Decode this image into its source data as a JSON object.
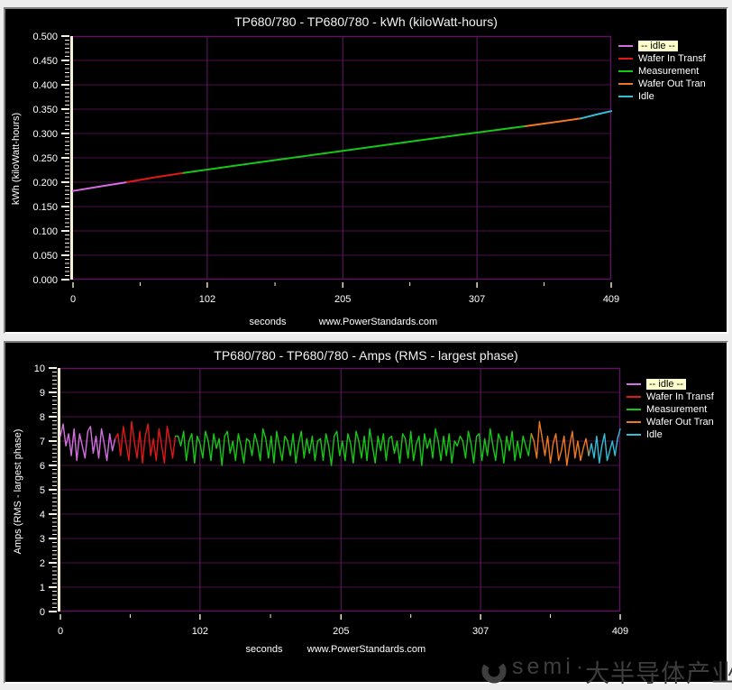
{
  "style": {
    "background": "#000000",
    "grid_color": "#4b104b",
    "vgrid_color": "#67196a",
    "frame_color": "#5c155c",
    "axis_color": "#f7f1d8",
    "text_color": "#ffffff",
    "highlight_color": "#ffffcc"
  },
  "legend_items": [
    {
      "label": "-- idle --",
      "color": "#d46ee0",
      "highlighted": true
    },
    {
      "label": "Wafer In Transf",
      "color": "#e01818",
      "highlighted": false
    },
    {
      "label": "Measurement",
      "color": "#16c816",
      "highlighted": false
    },
    {
      "label": "Wafer Out Tran",
      "color": "#f07820",
      "highlighted": false
    },
    {
      "label": "Idle",
      "color": "#32bdd8",
      "highlighted": false
    }
  ],
  "watermark": {
    "latin": "semi",
    "separator": "·",
    "chinese": "大半导体产业网",
    "color": "#3e3e3e"
  },
  "chart_data": [
    {
      "type": "line",
      "title": "TP680/780 - TP680/780 - kWh (kiloWatt-hours)",
      "xlabel": "seconds",
      "ylabel": "kWh (kiloWatt-hours)",
      "annotation": "www.PowerStandards.com",
      "xlim": [
        0,
        409
      ],
      "ylim": [
        0,
        0.5
      ],
      "xtick_values": [
        0,
        102,
        205,
        307,
        409
      ],
      "xtick_labels": [
        "0",
        "102",
        "205",
        "307",
        "409"
      ],
      "ytick_values": [
        0,
        0.05,
        0.1,
        0.15,
        0.2,
        0.25,
        0.3,
        0.35,
        0.4,
        0.45,
        0.5
      ],
      "ytick_labels": [
        "0.000",
        "0.050",
        "0.100",
        "0.150",
        "0.200",
        "0.250",
        "0.300",
        "0.350",
        "0.400",
        "0.450",
        "0.500"
      ],
      "y_minor_per_interval": 5,
      "x_minor_per_interval": 1,
      "grid": true,
      "legend_position": "right",
      "stroke_width": 2,
      "series": [
        {
          "name": "-- idle --",
          "color": "#d46ee0",
          "points": [
            [
              0,
              0.182
            ],
            [
              20,
              0.191
            ],
            [
              41,
              0.2
            ]
          ]
        },
        {
          "name": "Wafer In Transf",
          "color": "#e01818",
          "points": [
            [
              41,
              0.2
            ],
            [
              62,
              0.21
            ],
            [
              84,
              0.219
            ]
          ]
        },
        {
          "name": "Measurement",
          "color": "#16c816",
          "points": [
            [
              84,
              0.219
            ],
            [
              150,
              0.244
            ],
            [
              220,
              0.27
            ],
            [
              290,
              0.296
            ],
            [
              344,
              0.315
            ]
          ]
        },
        {
          "name": "Wafer Out Tran",
          "color": "#f07820",
          "points": [
            [
              344,
              0.315
            ],
            [
              365,
              0.323
            ],
            [
              386,
              0.331
            ]
          ]
        },
        {
          "name": "Idle",
          "color": "#32bdd8",
          "points": [
            [
              386,
              0.331
            ],
            [
              398,
              0.339
            ],
            [
              409,
              0.346
            ]
          ]
        }
      ]
    },
    {
      "type": "line",
      "title": "TP680/780 - TP680/780 - Amps (RMS - largest phase)",
      "xlabel": "seconds",
      "ylabel": "Amps (RMS - largest phase)",
      "annotation": "www.PowerStandards.com",
      "xlim": [
        0,
        409
      ],
      "ylim": [
        0,
        10
      ],
      "xtick_values": [
        0,
        102,
        205,
        307,
        409
      ],
      "xtick_labels": [
        "0",
        "102",
        "205",
        "307",
        "409"
      ],
      "ytick_values": [
        0,
        1,
        2,
        3,
        4,
        5,
        6,
        7,
        8,
        9,
        10
      ],
      "ytick_labels": [
        "0",
        "1",
        "2",
        "3",
        "4",
        "5",
        "6",
        "7",
        "8",
        "9",
        "10"
      ],
      "y_minor_per_interval": 5,
      "x_minor_per_interval": 1,
      "grid": true,
      "legend_position": "right",
      "stroke_width": 1.4,
      "series": [
        {
          "name": "-- idle --",
          "color": "#d46ee0",
          "t0": 0,
          "t1": 40,
          "values": [
            7.2,
            7.7,
            6.8,
            7.3,
            6.4,
            7.5,
            6.2,
            7.3,
            6.8,
            6.3,
            7.4,
            7.6,
            6.5,
            7.2,
            6.3,
            7.5,
            6.9,
            6.2,
            7.3,
            6.6,
            7.1
          ]
        },
        {
          "name": "Wafer In Transf",
          "color": "#e01818",
          "t0": 42,
          "t1": 84,
          "values": [
            7.3,
            6.4,
            7.6,
            6.9,
            6.2,
            7.8,
            7.0,
            6.3,
            7.4,
            6.1,
            7.2,
            7.7,
            6.4,
            7.1,
            6.2,
            7.5,
            6.8,
            6.1,
            7.6,
            7.0,
            6.3,
            7.2
          ]
        },
        {
          "name": "Measurement",
          "color": "#16c816",
          "t0": 86,
          "t1": 344,
          "values": [
            7.2,
            6.8,
            7.4,
            6.2,
            7.0,
            7.3,
            6.1,
            7.2,
            6.9,
            6.3,
            7.4,
            7.0,
            6.2,
            7.3,
            6.7,
            7.1,
            6.0,
            7.2,
            7.4,
            6.5,
            7.0,
            6.2,
            7.3,
            6.8,
            6.1,
            7.1,
            7.0,
            6.4,
            7.3,
            6.9,
            6.2,
            7.5,
            7.1,
            6.3,
            7.2,
            6.1,
            7.4,
            6.8,
            6.2,
            7.2,
            7.0,
            6.4,
            7.3,
            6.1,
            6.9,
            7.4,
            6.3,
            7.1,
            6.5,
            7.2,
            6.2,
            7.0,
            7.1,
            6.2,
            7.3,
            6.8,
            6.0,
            7.2,
            7.4,
            6.4,
            7.0,
            6.2,
            7.3,
            6.9,
            6.1,
            7.4,
            7.0,
            6.3,
            7.2,
            6.2,
            7.5,
            6.8,
            6.1,
            7.2,
            6.6,
            7.3,
            6.2,
            7.1,
            7.2,
            6.5,
            7.0,
            6.1,
            7.3,
            7.1,
            6.3,
            7.4,
            6.2,
            6.9,
            7.2,
            6.0,
            7.3,
            6.7,
            7.1,
            6.3,
            7.5,
            7.0,
            6.2,
            7.2,
            6.4,
            7.3,
            6.1,
            7.0,
            6.8,
            7.2,
            7.0,
            6.3,
            7.4,
            6.9,
            6.1,
            7.2,
            7.3,
            6.2,
            7.1,
            6.4,
            7.5,
            6.8,
            6.2,
            7.3,
            7.0,
            6.1,
            7.2,
            6.6,
            7.4,
            6.2,
            7.0,
            6.3,
            7.2,
            6.8,
            6.4,
            7.3
          ]
        },
        {
          "name": "Wafer Out Tran",
          "color": "#f07820",
          "t0": 346,
          "t1": 386,
          "values": [
            7.0,
            6.3,
            7.8,
            7.1,
            6.4,
            7.2,
            6.1,
            6.9,
            7.3,
            6.2,
            6.6,
            7.2,
            6.0,
            6.8,
            7.4,
            6.3,
            7.0,
            6.2,
            6.7,
            7.1,
            6.4
          ]
        },
        {
          "name": "Idle",
          "color": "#32bdd8",
          "t0": 388,
          "t1": 409,
          "values": [
            6.9,
            6.3,
            7.2,
            6.1,
            6.8,
            7.3,
            6.2,
            6.6,
            7.0,
            6.4,
            7.1,
            7.5
          ]
        }
      ]
    }
  ]
}
